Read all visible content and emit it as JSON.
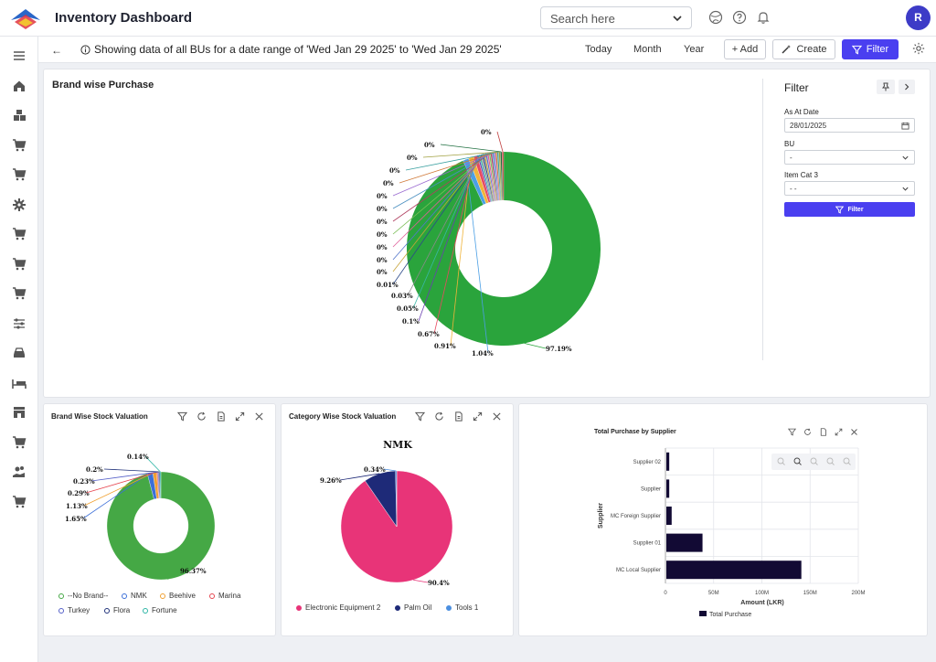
{
  "app": {
    "title": "Inventory Dashboard",
    "user_initial": "R"
  },
  "search": {
    "placeholder": "Search here"
  },
  "toolbar": {
    "info_text": "Showing data of all BUs for a date range of 'Wed Jan 29 2025' to 'Wed Jan 29 2025'",
    "ranges": [
      "Today",
      "Month",
      "Year"
    ],
    "add_label": "+ Add",
    "create_label": "Create",
    "filter_label": "Filter"
  },
  "sidebar_icons": [
    "menu-icon",
    "home-icon",
    "boxes-icon",
    "cart-icon",
    "cart-icon",
    "gear-icon",
    "cart-icon",
    "cart-icon",
    "cart-icon",
    "sliders-icon",
    "car-icon",
    "bed-icon",
    "store-icon",
    "cart-icon",
    "hand-coins-icon",
    "cart-icon"
  ],
  "brand_purchase": {
    "title": "Brand wise Purchase",
    "chart_data": {
      "type": "pie",
      "values": [
        97.19,
        1.04,
        0.91,
        0.67,
        0.1,
        0.05,
        0.03,
        0.01,
        0,
        0,
        0,
        0,
        0,
        0,
        0,
        0,
        0,
        0,
        0,
        0
      ],
      "labels": [
        "97.19%",
        "1.04%",
        "0.91%",
        "0.67%",
        "0.1%",
        "0.05%",
        "0.03%",
        "0.01%",
        "0%",
        "0%",
        "0%",
        "0%",
        "0%",
        "0%",
        "0%",
        "0%",
        "0%",
        "0%",
        "0%",
        "0%"
      ],
      "colors": [
        "#2aa43c",
        "#4b9fe5",
        "#f0b43a",
        "#e84a5f",
        "#6a3fb0",
        "#39b7a7",
        "#8b8b8b",
        "#2d4a8a",
        "#c7a43a",
        "#5577cc",
        "#e0609a",
        "#7dbf5a",
        "#b04060",
        "#4a90c0",
        "#9a6ad0",
        "#d07a3a",
        "#3aa0a0",
        "#a0a040",
        "#1f6f40",
        "#c04040"
      ]
    }
  },
  "filter_panel": {
    "title": "Filter",
    "as_at_date_label": "As At Date",
    "as_at_date_value": "28/01/2025",
    "bu_label": "BU",
    "bu_value": "-",
    "item_cat_label": "Item Cat 3",
    "item_cat_value": "- -",
    "apply_label": "Filter"
  },
  "brand_stock": {
    "title": "Brand Wise Stock Valuation",
    "chart_data": {
      "type": "pie",
      "values": [
        96.37,
        1.65,
        1.13,
        0.29,
        0.23,
        0.2,
        0.14
      ],
      "labels": [
        "96.37%",
        "1.65%",
        "1.13%",
        "0.29%",
        "0.23%",
        "0.2%",
        "0.14%"
      ],
      "colors": [
        "#45a845",
        "#3b6fd8",
        "#f0a030",
        "#e6454f",
        "#5560c8",
        "#1d2f78",
        "#2cb5a5"
      ],
      "legend": [
        "--No Brand--",
        "NMK",
        "Beehive",
        "Marina",
        "Turkey",
        "Flora",
        "Fortune"
      ]
    }
  },
  "category_stock": {
    "title": "Category Wise Stock Valuation",
    "chart_data": {
      "type": "pie",
      "title": "NMK",
      "values": [
        90.4,
        9.26,
        0.34
      ],
      "labels": [
        "90.4%",
        "9.26%",
        "0.34%"
      ],
      "colors": [
        "#e83478",
        "#1e2a78",
        "#4b8fe0"
      ],
      "legend": [
        "Electronic Equipment 2",
        "Palm Oil",
        "Tools 1"
      ]
    }
  },
  "supplier": {
    "title": "Total Purchase by Supplier",
    "chart_data": {
      "type": "bar",
      "categories": [
        "Supplier 02",
        "Supplier",
        "MC Foreign Supplier",
        "Supplier 01",
        "MC Local Supplier"
      ],
      "values": [
        3,
        3,
        5.5,
        37.5,
        140
      ],
      "ylabel": "Supplier",
      "xlabel": "Amount (LKR)",
      "xticks": [
        "0",
        "50M",
        "100M",
        "150M",
        "200M"
      ],
      "xlim": [
        0,
        200
      ],
      "legend": "Total Purchase",
      "color": "#120a34"
    }
  }
}
